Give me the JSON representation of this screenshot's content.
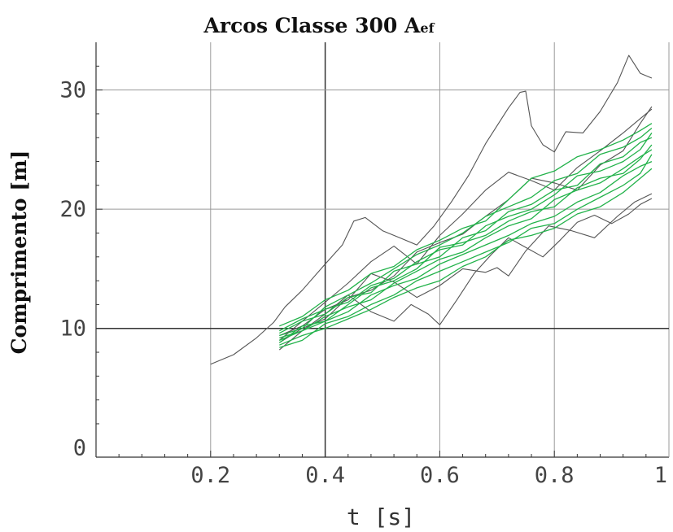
{
  "chart_data": {
    "type": "line",
    "title": "Arcos Classe 300 A",
    "title_subscript": "ef",
    "xlabel": "t [s]",
    "ylabel": "Comprimento [m]",
    "xlim": [
      0,
      1.0
    ],
    "ylim": [
      -0.8,
      34
    ],
    "grid": true,
    "x_ticks": [
      0.2,
      0.4,
      0.6,
      0.8,
      1.0
    ],
    "x_tick_labels": [
      "0.2",
      "0.4",
      "0.6",
      "0.8",
      "1"
    ],
    "y_ticks": [
      0,
      10,
      20,
      30
    ],
    "y_tick_labels": [
      "0",
      "10",
      "20",
      "30"
    ],
    "colors": {
      "gray_series": "#555555",
      "green_series": "#22b24a",
      "grid": "#9a9a9a",
      "grid_major": "#333333"
    },
    "series": [
      {
        "color": "gray",
        "x": [
          0.2,
          0.24,
          0.28,
          0.31,
          0.33,
          0.36,
          0.4,
          0.43,
          0.45,
          0.47,
          0.5,
          0.53,
          0.56,
          0.59,
          0.62,
          0.65,
          0.68,
          0.7,
          0.72,
          0.74,
          0.75,
          0.76,
          0.78,
          0.8,
          0.82,
          0.85,
          0.88,
          0.91,
          0.93,
          0.95,
          0.97
        ],
        "y": [
          7.0,
          7.8,
          9.2,
          10.5,
          11.8,
          13.2,
          15.4,
          17.0,
          19.0,
          19.3,
          18.2,
          17.6,
          17.0,
          18.6,
          20.6,
          22.8,
          25.5,
          27.0,
          28.5,
          29.8,
          29.9,
          27.0,
          25.4,
          24.8,
          26.5,
          26.4,
          28.2,
          30.6,
          32.9,
          31.4,
          31.0
        ]
      },
      {
        "color": "gray",
        "x": [
          0.32,
          0.36,
          0.4,
          0.44,
          0.48,
          0.52,
          0.55,
          0.58,
          0.6,
          0.63,
          0.66,
          0.69,
          0.72,
          0.75,
          0.78,
          0.81,
          0.84,
          0.87,
          0.9,
          0.93,
          0.95,
          0.97
        ],
        "y": [
          8.2,
          9.8,
          11.2,
          12.8,
          11.4,
          10.6,
          12.0,
          11.2,
          10.3,
          12.4,
          14.6,
          16.2,
          17.6,
          16.8,
          16.0,
          17.4,
          18.9,
          19.5,
          18.8,
          19.6,
          20.4,
          20.9
        ]
      },
      {
        "color": "gray",
        "x": [
          0.32,
          0.36,
          0.4,
          0.44,
          0.48,
          0.52,
          0.56,
          0.6,
          0.64,
          0.68,
          0.72,
          0.76,
          0.8,
          0.84,
          0.88,
          0.92,
          0.95,
          0.97
        ],
        "y": [
          9.0,
          10.6,
          12.2,
          13.8,
          15.6,
          16.9,
          15.4,
          17.8,
          19.6,
          21.6,
          23.1,
          22.4,
          21.6,
          23.5,
          24.9,
          26.4,
          27.6,
          28.4
        ]
      },
      {
        "color": "gray",
        "x": [
          0.32,
          0.36,
          0.4,
          0.44,
          0.48,
          0.52,
          0.56,
          0.6,
          0.64,
          0.68,
          0.7,
          0.72,
          0.75,
          0.79,
          0.83,
          0.87,
          0.91,
          0.94,
          0.97
        ],
        "y": [
          9.4,
          10.2,
          11.6,
          12.4,
          14.6,
          13.9,
          12.6,
          13.6,
          15.0,
          14.7,
          15.1,
          14.4,
          16.5,
          18.6,
          18.2,
          17.6,
          19.4,
          20.6,
          21.3
        ]
      },
      {
        "color": "gray",
        "x": [
          0.32,
          0.36,
          0.4,
          0.44,
          0.48,
          0.52,
          0.56,
          0.6,
          0.64,
          0.68,
          0.72,
          0.76,
          0.8,
          0.84,
          0.88,
          0.92,
          0.95,
          0.97
        ],
        "y": [
          8.8,
          10.0,
          10.8,
          12.6,
          13.2,
          14.4,
          16.4,
          17.2,
          17.9,
          19.4,
          20.8,
          22.6,
          22.2,
          21.6,
          23.7,
          24.9,
          27.2,
          28.6
        ]
      },
      {
        "color": "green",
        "x": [
          0.32,
          0.36,
          0.4,
          0.44,
          0.48,
          0.52,
          0.56,
          0.6,
          0.64,
          0.68,
          0.72,
          0.76,
          0.8,
          0.84,
          0.88,
          0.92,
          0.95,
          0.97
        ],
        "y": [
          9.0,
          9.8,
          10.6,
          11.4,
          12.8,
          13.6,
          14.2,
          15.4,
          16.2,
          17.0,
          17.8,
          18.8,
          19.4,
          20.6,
          21.4,
          22.8,
          23.6,
          24.0
        ]
      },
      {
        "color": "green",
        "x": [
          0.32,
          0.36,
          0.4,
          0.44,
          0.48,
          0.52,
          0.56,
          0.6,
          0.64,
          0.68,
          0.72,
          0.76,
          0.8,
          0.84,
          0.88,
          0.92,
          0.95,
          0.97
        ],
        "y": [
          9.6,
          10.6,
          11.2,
          12.6,
          13.0,
          14.8,
          15.4,
          16.0,
          17.6,
          18.2,
          19.8,
          20.4,
          21.6,
          22.0,
          23.8,
          24.4,
          25.6,
          26.0
        ]
      },
      {
        "color": "green",
        "x": [
          0.32,
          0.36,
          0.4,
          0.44,
          0.48,
          0.52,
          0.56,
          0.6,
          0.64,
          0.68,
          0.72,
          0.76,
          0.8,
          0.84,
          0.88,
          0.92,
          0.95,
          0.97
        ],
        "y": [
          8.6,
          9.4,
          10.0,
          10.8,
          11.6,
          12.6,
          13.4,
          14.0,
          15.2,
          16.0,
          17.4,
          17.8,
          18.4,
          19.6,
          20.2,
          21.4,
          22.6,
          23.4
        ]
      },
      {
        "color": "green",
        "x": [
          0.32,
          0.36,
          0.4,
          0.44,
          0.48,
          0.52,
          0.56,
          0.6,
          0.64,
          0.68,
          0.72,
          0.76,
          0.8,
          0.84,
          0.88,
          0.92,
          0.95,
          0.97
        ],
        "y": [
          10.2,
          11.0,
          12.4,
          13.2,
          14.6,
          15.2,
          16.6,
          17.4,
          18.4,
          19.0,
          20.8,
          22.6,
          23.2,
          24.4,
          25.0,
          25.8,
          26.6,
          27.2
        ]
      },
      {
        "color": "green",
        "x": [
          0.32,
          0.36,
          0.4,
          0.44,
          0.48,
          0.52,
          0.56,
          0.6,
          0.64,
          0.68,
          0.72,
          0.76,
          0.8,
          0.84,
          0.88,
          0.92,
          0.95,
          0.97
        ],
        "y": [
          9.2,
          9.8,
          11.0,
          11.8,
          12.4,
          13.8,
          14.8,
          15.8,
          16.4,
          17.6,
          18.6,
          19.2,
          20.8,
          21.6,
          22.2,
          23.4,
          24.4,
          25.0
        ]
      },
      {
        "color": "green",
        "x": [
          0.32,
          0.36,
          0.4,
          0.44,
          0.48,
          0.52,
          0.56,
          0.6,
          0.64,
          0.68,
          0.72,
          0.76,
          0.8,
          0.84,
          0.88,
          0.92,
          0.95,
          0.97
        ],
        "y": [
          8.4,
          9.0,
          10.4,
          11.0,
          12.0,
          12.8,
          14.0,
          14.8,
          15.6,
          16.4,
          17.2,
          18.4,
          18.8,
          20.0,
          21.0,
          22.0,
          23.0,
          24.6
        ]
      },
      {
        "color": "green",
        "x": [
          0.32,
          0.36,
          0.4,
          0.44,
          0.48,
          0.52,
          0.56,
          0.6,
          0.64,
          0.68,
          0.72,
          0.76,
          0.8,
          0.84,
          0.88,
          0.92,
          0.95,
          0.97
        ],
        "y": [
          9.8,
          10.8,
          11.6,
          12.2,
          13.6,
          14.2,
          15.6,
          16.6,
          17.0,
          18.6,
          19.4,
          20.0,
          21.2,
          22.8,
          23.2,
          24.0,
          25.0,
          26.4
        ]
      },
      {
        "color": "green",
        "x": [
          0.32,
          0.36,
          0.4,
          0.44,
          0.48,
          0.52,
          0.56,
          0.6,
          0.64,
          0.68,
          0.72,
          0.76,
          0.8,
          0.84,
          0.88,
          0.92,
          0.95,
          0.97
        ],
        "y": [
          8.8,
          10.2,
          10.6,
          12.0,
          13.4,
          14.0,
          15.0,
          16.8,
          17.2,
          17.8,
          19.0,
          19.8,
          20.2,
          21.8,
          22.6,
          23.0,
          24.2,
          25.4
        ]
      },
      {
        "color": "green",
        "x": [
          0.32,
          0.36,
          0.4,
          0.44,
          0.48,
          0.52,
          0.56,
          0.6,
          0.64,
          0.68,
          0.72,
          0.76,
          0.8,
          0.84,
          0.88,
          0.92,
          0.95,
          0.97
        ],
        "y": [
          9.4,
          10.0,
          11.8,
          12.8,
          13.8,
          15.0,
          16.2,
          17.0,
          18.0,
          19.4,
          20.2,
          21.0,
          22.4,
          23.0,
          24.6,
          25.2,
          26.0,
          26.8
        ]
      }
    ]
  }
}
